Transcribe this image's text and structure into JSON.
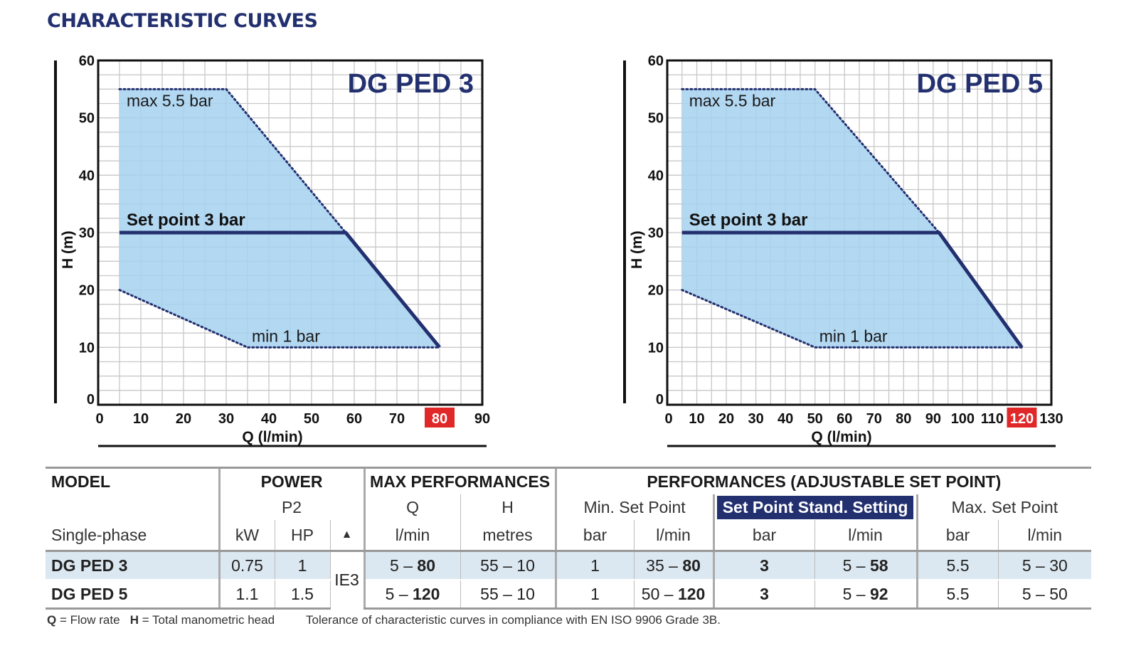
{
  "page_title": "CHARACTERISTIC CURVES",
  "colors": {
    "navy": "#23306f",
    "fill": "#a6d1f0",
    "highlight_red": "#e02828",
    "grid": "#c8c8c8"
  },
  "chart_data": [
    {
      "type": "area",
      "title": "DG PED 3",
      "xlabel": "Q (l/min)",
      "ylabel": "H (m)",
      "x_ticks": [
        "0",
        "10",
        "20",
        "30",
        "40",
        "50",
        "60",
        "70",
        "80",
        "90"
      ],
      "y_ticks": [
        "0",
        "10",
        "20",
        "30",
        "40",
        "50",
        "60"
      ],
      "highlight_tick": "80",
      "xlim": [
        0,
        90
      ],
      "ylim": [
        0,
        60
      ],
      "grid": true,
      "envelope": [
        [
          5,
          55
        ],
        [
          30,
          55
        ],
        [
          58,
          30
        ],
        [
          80,
          10
        ],
        [
          35,
          10
        ],
        [
          5,
          20
        ]
      ],
      "series": [
        {
          "name": "max 5.5 bar",
          "style": "dotted",
          "x": [
            5,
            30,
            58
          ],
          "y": [
            55,
            55,
            30
          ]
        },
        {
          "name": "Set point 3 bar",
          "style": "solid",
          "x": [
            5,
            58,
            80
          ],
          "y": [
            30,
            30,
            10
          ]
        },
        {
          "name": "min 1 bar",
          "style": "dotted",
          "x": [
            5,
            35,
            80
          ],
          "y": [
            20,
            10,
            10
          ]
        }
      ]
    },
    {
      "type": "area",
      "title": "DG PED 5",
      "xlabel": "Q (l/min)",
      "ylabel": "H (m)",
      "x_ticks": [
        "0",
        "10",
        "20",
        "30",
        "40",
        "50",
        "60",
        "70",
        "80",
        "90",
        "100",
        "110",
        "120",
        "130"
      ],
      "y_ticks": [
        "0",
        "10",
        "20",
        "30",
        "40",
        "50",
        "60"
      ],
      "highlight_tick": "120",
      "xlim": [
        0,
        130
      ],
      "ylim": [
        0,
        60
      ],
      "grid": true,
      "envelope": [
        [
          5,
          55
        ],
        [
          50,
          55
        ],
        [
          92,
          30
        ],
        [
          120,
          10
        ],
        [
          50,
          10
        ],
        [
          5,
          20
        ]
      ],
      "series": [
        {
          "name": "max 5.5 bar",
          "style": "dotted",
          "x": [
            5,
            50,
            92
          ],
          "y": [
            55,
            55,
            30
          ]
        },
        {
          "name": "Set point 3 bar",
          "style": "solid",
          "x": [
            5,
            92,
            120
          ],
          "y": [
            30,
            30,
            10
          ]
        },
        {
          "name": "min 1 bar",
          "style": "dotted",
          "x": [
            5,
            50,
            120
          ],
          "y": [
            20,
            10,
            10
          ]
        }
      ]
    }
  ],
  "table": {
    "h_model": "MODEL",
    "h_power": "POWER",
    "h_maxperf": "MAX PERFORMANCES",
    "h_perf": "PERFORMANCES (ADJUSTABLE SET POINT)",
    "h_p2": "P2",
    "h_q": "Q",
    "h_h": "H",
    "h_min_sp": "Min. Set Point",
    "h_std_sp": "Set Point Stand. Setting",
    "h_max_sp": "Max. Set Point",
    "u_single": "Single-phase",
    "u_kw": "kW",
    "u_hp": "HP",
    "u_tri": "▲",
    "u_lmin": "l/min",
    "u_metres": "metres",
    "u_bar": "bar",
    "ie3": "IE3",
    "rows": [
      {
        "model": "DG PED 3",
        "kw": "0.75",
        "hp": "1",
        "q_lo": "5 – ",
        "q_hi": "80",
        "h": "55 – 10",
        "min_bar": "1",
        "min_lo": "35 – ",
        "min_hi": "80",
        "std_bar": "3",
        "std_lo": "5 – ",
        "std_hi": "58",
        "max_bar": "5.5",
        "max_l": "5 – 30"
      },
      {
        "model": "DG PED 5",
        "kw": "1.1",
        "hp": "1.5",
        "q_lo": "5 – ",
        "q_hi": "120",
        "h": "55 – 10",
        "min_bar": "1",
        "min_lo": "50 – ",
        "min_hi": "120",
        "std_bar": "3",
        "std_lo": "5 – ",
        "std_hi": "92",
        "max_bar": "5.5",
        "max_l": "5 – 50"
      }
    ]
  },
  "footnote": {
    "q_key": "Q",
    "q_def": " = Flow rate",
    "h_key": "H",
    "h_def": " = Total manometric head",
    "tolerance": "Tolerance of characteristic curves in compliance with EN ISO 9906 Grade 3B."
  }
}
